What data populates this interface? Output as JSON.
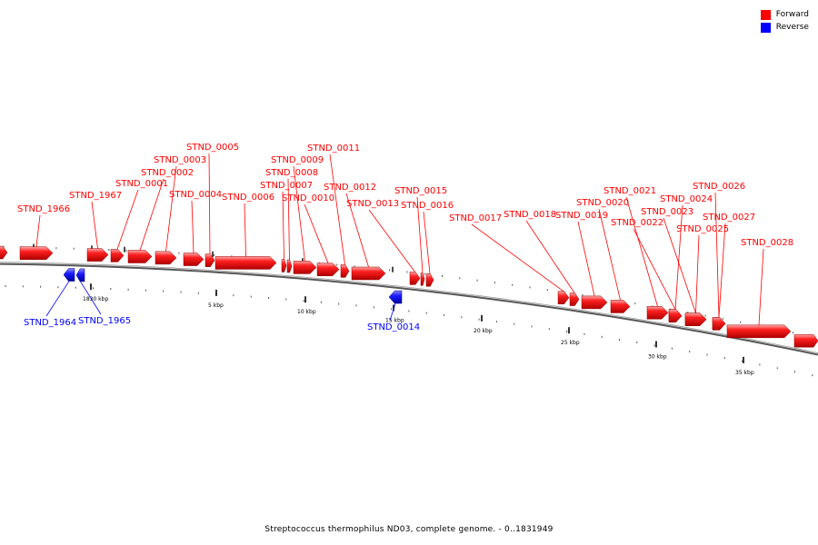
{
  "legend": {
    "forward_label": "Forward",
    "reverse_label": "Reverse",
    "forward_color": "#ff0000",
    "reverse_color": "#0000ff"
  },
  "caption": "Streptococcus thermophilus ND03, complete genome. - 0..1831949",
  "scale_labels": [
    "1830 kbp",
    "5 kbp",
    "10 kbp",
    "15 kbp",
    "20 kbp",
    "25 kbp",
    "30 kbp",
    "35 kbp"
  ],
  "genes": [
    {
      "name": "STND_1966",
      "strand": "forward"
    },
    {
      "name": "STND_1967",
      "strand": "forward"
    },
    {
      "name": "STND_0001",
      "strand": "forward"
    },
    {
      "name": "STND_0002",
      "strand": "forward"
    },
    {
      "name": "STND_0003",
      "strand": "forward"
    },
    {
      "name": "STND_0004",
      "strand": "forward"
    },
    {
      "name": "STND_0005",
      "strand": "forward"
    },
    {
      "name": "STND_0006",
      "strand": "forward"
    },
    {
      "name": "STND_0007",
      "strand": "forward"
    },
    {
      "name": "STND_0008",
      "strand": "forward"
    },
    {
      "name": "STND_0009",
      "strand": "forward"
    },
    {
      "name": "STND_0010",
      "strand": "forward"
    },
    {
      "name": "STND_0011",
      "strand": "forward"
    },
    {
      "name": "STND_0012",
      "strand": "forward"
    },
    {
      "name": "STND_0013",
      "strand": "forward"
    },
    {
      "name": "STND_0015",
      "strand": "forward"
    },
    {
      "name": "STND_0016",
      "strand": "forward"
    },
    {
      "name": "STND_0017",
      "strand": "forward"
    },
    {
      "name": "STND_0018",
      "strand": "forward"
    },
    {
      "name": "STND_0019",
      "strand": "forward"
    },
    {
      "name": "STND_0020",
      "strand": "forward"
    },
    {
      "name": "STND_0021",
      "strand": "forward"
    },
    {
      "name": "STND_0022",
      "strand": "forward"
    },
    {
      "name": "STND_0023",
      "strand": "forward"
    },
    {
      "name": "STND_0024",
      "strand": "forward"
    },
    {
      "name": "STND_0025",
      "strand": "forward"
    },
    {
      "name": "STND_0026",
      "strand": "forward"
    },
    {
      "name": "STND_0027",
      "strand": "forward"
    },
    {
      "name": "STND_0028",
      "strand": "forward"
    },
    {
      "name": "STND_1964",
      "strand": "reverse"
    },
    {
      "name": "STND_1965",
      "strand": "reverse"
    },
    {
      "name": "STND_0014",
      "strand": "reverse"
    }
  ]
}
